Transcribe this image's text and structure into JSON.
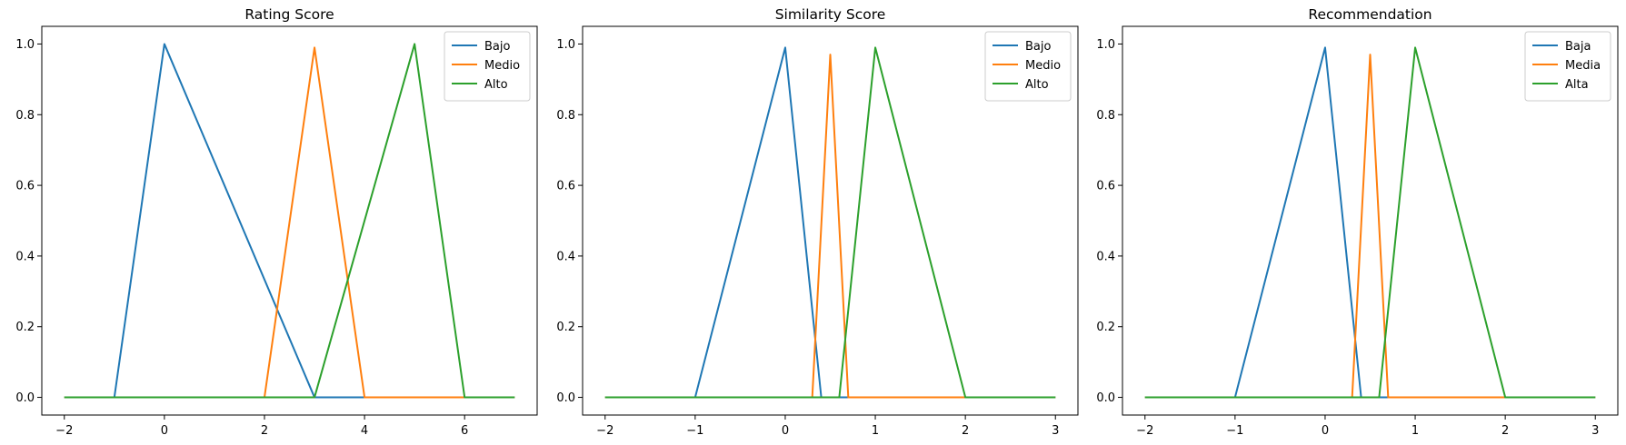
{
  "chart_data": [
    {
      "type": "line",
      "title": "Rating Score",
      "xlabel": "",
      "ylabel": "",
      "xlim": [
        -2.45,
        7.45
      ],
      "ylim": [
        -0.05,
        1.05
      ],
      "xticks": [
        -2,
        0,
        2,
        4,
        6
      ],
      "yticks": [
        0.0,
        0.2,
        0.4,
        0.6,
        0.8,
        1.0
      ],
      "xtick_labels": [
        "−2",
        "0",
        "2",
        "4",
        "6"
      ],
      "ytick_labels": [
        "0.0",
        "0.2",
        "0.4",
        "0.6",
        "0.8",
        "1.0"
      ],
      "legend_position": "top-right",
      "grid": false,
      "series": [
        {
          "name": "Bajo",
          "color": "#1f77b4",
          "x": [
            -2,
            -1,
            0,
            3,
            7
          ],
          "y": [
            0,
            0,
            1,
            0,
            0
          ]
        },
        {
          "name": "Medio",
          "color": "#ff7f0e",
          "x": [
            -2,
            2,
            3,
            4,
            7
          ],
          "y": [
            0,
            0,
            0.99,
            0,
            0
          ]
        },
        {
          "name": "Alto",
          "color": "#2ca02c",
          "x": [
            -2,
            3,
            5,
            6,
            7
          ],
          "y": [
            0,
            0,
            1,
            0,
            0
          ]
        }
      ]
    },
    {
      "type": "line",
      "title": "Similarity Score",
      "xlabel": "",
      "ylabel": "",
      "xlim": [
        -2.25,
        3.25
      ],
      "ylim": [
        -0.05,
        1.05
      ],
      "xticks": [
        -2,
        -1,
        0,
        1,
        2,
        3
      ],
      "yticks": [
        0.0,
        0.2,
        0.4,
        0.6,
        0.8,
        1.0
      ],
      "xtick_labels": [
        "−2",
        "−1",
        "0",
        "1",
        "2",
        "3"
      ],
      "ytick_labels": [
        "0.0",
        "0.2",
        "0.4",
        "0.6",
        "0.8",
        "1.0"
      ],
      "legend_position": "top-right",
      "grid": false,
      "series": [
        {
          "name": "Bajo",
          "color": "#1f77b4",
          "x": [
            -2,
            -1,
            0,
            0.4,
            3
          ],
          "y": [
            0,
            0,
            0.99,
            0,
            0
          ]
        },
        {
          "name": "Medio",
          "color": "#ff7f0e",
          "x": [
            -2,
            0.3,
            0.5,
            0.7,
            3
          ],
          "y": [
            0,
            0,
            0.97,
            0,
            0
          ]
        },
        {
          "name": "Alto",
          "color": "#2ca02c",
          "x": [
            -2,
            0.6,
            1,
            2,
            3
          ],
          "y": [
            0,
            0,
            0.99,
            0,
            0
          ]
        }
      ]
    },
    {
      "type": "line",
      "title": "Recommendation",
      "xlabel": "",
      "ylabel": "",
      "xlim": [
        -2.25,
        3.25
      ],
      "ylim": [
        -0.05,
        1.05
      ],
      "xticks": [
        -2,
        -1,
        0,
        1,
        2,
        3
      ],
      "yticks": [
        0.0,
        0.2,
        0.4,
        0.6,
        0.8,
        1.0
      ],
      "xtick_labels": [
        "−2",
        "−1",
        "0",
        "1",
        "2",
        "3"
      ],
      "ytick_labels": [
        "0.0",
        "0.2",
        "0.4",
        "0.6",
        "0.8",
        "1.0"
      ],
      "legend_position": "top-right",
      "grid": false,
      "series": [
        {
          "name": "Baja",
          "color": "#1f77b4",
          "x": [
            -2,
            -1,
            0,
            0.4,
            3
          ],
          "y": [
            0,
            0,
            0.99,
            0,
            0
          ]
        },
        {
          "name": "Media",
          "color": "#ff7f0e",
          "x": [
            -2,
            0.3,
            0.5,
            0.7,
            3
          ],
          "y": [
            0,
            0,
            0.97,
            0,
            0
          ]
        },
        {
          "name": "Alta",
          "color": "#2ca02c",
          "x": [
            -2,
            0.6,
            1,
            2,
            3
          ],
          "y": [
            0,
            0,
            0.99,
            0,
            0
          ]
        }
      ]
    }
  ]
}
